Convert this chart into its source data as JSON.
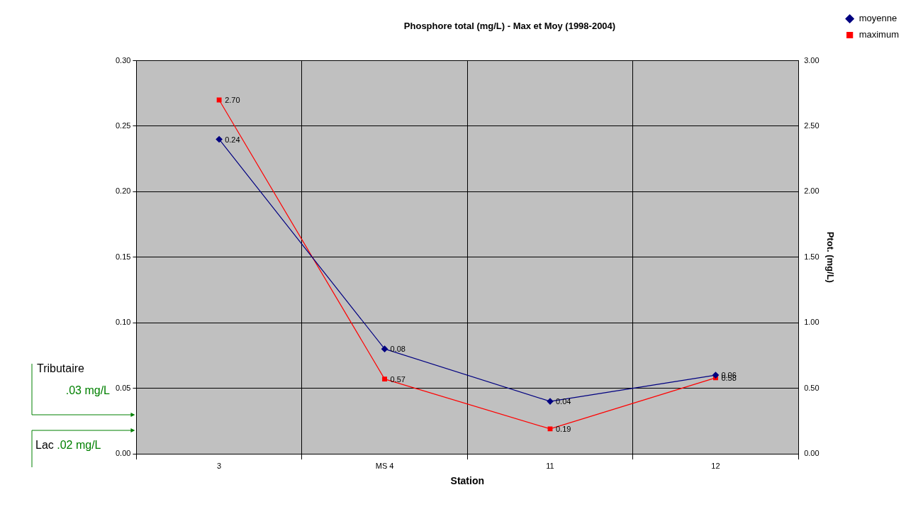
{
  "chart_data": {
    "type": "line",
    "title": "Phosphore total (mg/L) - Max et Moy (1998-2004)",
    "xlabel": "Station",
    "y2label": "Ptot. (mg/L)",
    "categories": [
      "3",
      "MS 4",
      "11",
      "12"
    ],
    "series": [
      {
        "name": "moyenne",
        "color": "#000080",
        "values": [
          0.24,
          0.08,
          0.04,
          0.06
        ],
        "value_labels": [
          "0.24",
          "0.08",
          "0.04",
          "0.06"
        ],
        "marker": "diamond"
      },
      {
        "name": "maximum",
        "color": "#ff0000",
        "values": [
          2.7,
          0.57,
          0.19,
          0.58
        ],
        "value_labels": [
          "2.70",
          "0.57",
          "0.19",
          "0.58"
        ],
        "marker": "square",
        "axis": "y2"
      }
    ],
    "ylim": [
      0,
      0.3
    ],
    "yticks": [
      {
        "value": 0,
        "label": "0.00"
      },
      {
        "value": 0.05,
        "label": "0.05"
      },
      {
        "value": 0.1,
        "label": "0.10"
      },
      {
        "value": 0.15,
        "label": "0.15"
      },
      {
        "value": 0.2,
        "label": "0.20"
      },
      {
        "value": 0.25,
        "label": "0.25"
      },
      {
        "value": 0.3,
        "label": "0.30"
      }
    ],
    "y2lim": [
      0,
      3
    ],
    "y2ticks": [
      {
        "value": 0,
        "label": "0.00"
      },
      {
        "value": 0.5,
        "label": "0.50"
      },
      {
        "value": 1,
        "label": "1.00"
      },
      {
        "value": 1.5,
        "label": "1.50"
      },
      {
        "value": 2,
        "label": "2.00"
      },
      {
        "value": 2.5,
        "label": "2.50"
      },
      {
        "value": 3,
        "label": "3.00"
      }
    ],
    "grid": true,
    "legend": "top right",
    "line_style": "solid",
    "annotations": [
      "Tributaire .03 mg/L",
      "Lac .02 mg/L"
    ]
  }
}
